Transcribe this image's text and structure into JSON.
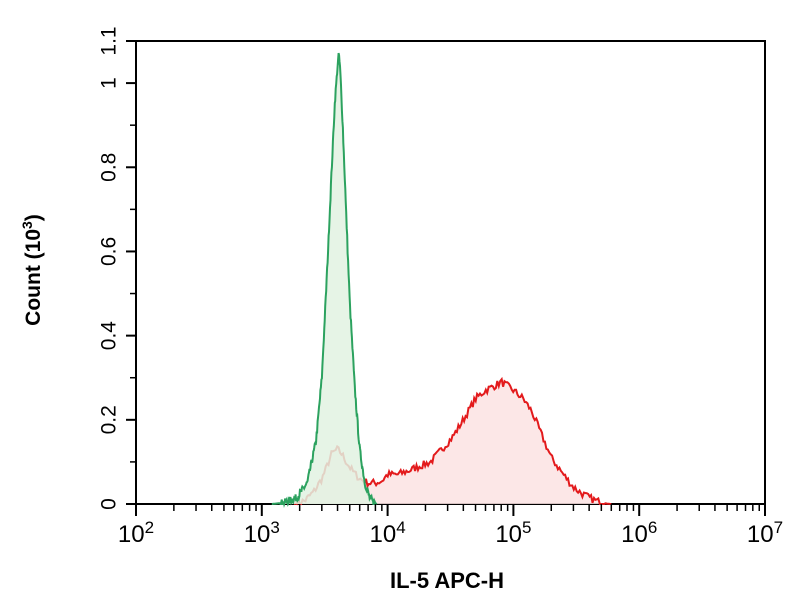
{
  "chart_data": {
    "type": "area",
    "title": "",
    "xlabel": "IL-5 APC-H",
    "ylabel": {
      "base": "Count (10",
      "exp": "3",
      "close": ")"
    },
    "x_scale": "log",
    "xlim": [
      100,
      10000000
    ],
    "ylim": [
      0,
      1.1
    ],
    "x_ticks": [
      {
        "base": "10",
        "exp": "2",
        "value": 100
      },
      {
        "base": "10",
        "exp": "3",
        "value": 1000
      },
      {
        "base": "10",
        "exp": "4",
        "value": 10000
      },
      {
        "base": "10",
        "exp": "5",
        "value": 100000
      },
      {
        "base": "10",
        "exp": "6",
        "value": 1000000
      },
      {
        "base": "10",
        "exp": "7",
        "value": 10000000
      }
    ],
    "y_ticks": [
      {
        "label": "0",
        "value": 0
      },
      {
        "label": "0.2",
        "value": 0.2
      },
      {
        "label": "0.4",
        "value": 0.4
      },
      {
        "label": "0.6",
        "value": 0.6
      },
      {
        "label": "0.8",
        "value": 0.8
      },
      {
        "label": "1",
        "value": 1.0
      },
      {
        "label": "1.1",
        "value": 1.1
      }
    ],
    "grid": false,
    "legend": "none",
    "series": [
      {
        "color": "#2ca25f",
        "fill": "#e2f2e2",
        "x": [
          1200,
          1500,
          1900,
          2300,
          2700,
          3000,
          3300,
          3600,
          3800,
          4000,
          4100,
          4200,
          4400,
          4700,
          5000,
          5500,
          6000,
          6600,
          7200,
          7800,
          8200
        ],
        "y": [
          0,
          0.003,
          0.015,
          0.05,
          0.15,
          0.3,
          0.55,
          0.8,
          0.95,
          1.04,
          1.07,
          1.03,
          0.9,
          0.68,
          0.48,
          0.27,
          0.13,
          0.05,
          0.015,
          0.004,
          0
        ]
      },
      {
        "color": "#e31a1c",
        "fill": "#fbe3e3",
        "x": [
          1800,
          2200,
          2600,
          3000,
          3300,
          3600,
          4000,
          4300,
          4700,
          5200,
          6000,
          7000,
          8000,
          9000,
          10000,
          12000,
          15000,
          18000,
          22000,
          27000,
          33000,
          40000,
          50000,
          60000,
          70000,
          80000,
          90000,
          100000,
          120000,
          140000,
          170000,
          200000,
          250000,
          300000,
          350000,
          400000,
          450000,
          500000,
          550000,
          600000
        ],
        "y": [
          0,
          0.008,
          0.03,
          0.06,
          0.09,
          0.12,
          0.13,
          0.12,
          0.1,
          0.08,
          0.06,
          0.05,
          0.05,
          0.055,
          0.07,
          0.07,
          0.08,
          0.09,
          0.1,
          0.13,
          0.16,
          0.2,
          0.25,
          0.27,
          0.28,
          0.29,
          0.28,
          0.27,
          0.25,
          0.22,
          0.16,
          0.11,
          0.07,
          0.04,
          0.025,
          0.015,
          0.008,
          0.004,
          0.001,
          0
        ]
      }
    ]
  }
}
